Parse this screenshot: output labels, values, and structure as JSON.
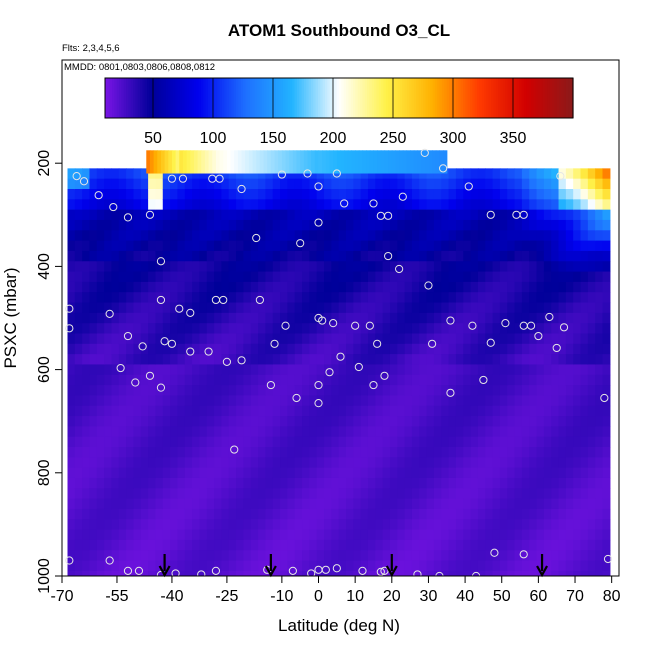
{
  "chart_data": {
    "type": "heatmap",
    "title": "ATOM1 Southbound O3_CL",
    "notes": [
      "Flts: 2,3,4,5,6",
      "MMDD: 0801,0803,0806,0808,0812"
    ],
    "xlabel": "Latitude (deg N)",
    "ylabel": "PSXC (mbar)",
    "xlim": [
      -70,
      82
    ],
    "ylim": [
      1000,
      0
    ],
    "y_reversed": true,
    "x_ticks": [
      -70,
      -55,
      -40,
      -25,
      -10,
      0,
      10,
      20,
      30,
      40,
      50,
      60,
      70,
      80
    ],
    "x_tick_labels": [
      "-70",
      "-55",
      "-40",
      "-25",
      "-10",
      "0",
      "10",
      "20",
      "30",
      "40",
      "50",
      "60",
      "70",
      "80"
    ],
    "y_ticks": [
      200,
      400,
      600,
      800,
      1000
    ],
    "y_tick_labels": [
      "200",
      "400",
      "600",
      "800",
      "1000"
    ],
    "colorbar": {
      "range": [
        10,
        400
      ],
      "ticks": [
        50,
        100,
        150,
        200,
        250,
        300,
        350
      ],
      "tick_labels": [
        "50",
        "100",
        "150",
        "200",
        "250",
        "300",
        "350"
      ],
      "colors": [
        "#7a14e6",
        "#000099",
        "#0000ee",
        "#1e6fff",
        "#22b4ff",
        "#ffffff",
        "#fff24a",
        "#ffb000",
        "#ff3a00",
        "#d10000",
        "#8b1a1a"
      ],
      "position": "top"
    },
    "data_extent": {
      "lat_range": [
        -68.5,
        79.5
      ],
      "top_pressure": 210,
      "stratospheric_band": {
        "lat_range": [
          -47,
          35
        ],
        "pressure_range": [
          175,
          220
        ]
      }
    },
    "arrow_latitudes": [
      -42,
      -13,
      20,
      61
    ],
    "sample_points": [
      [
        -66,
        225
      ],
      [
        -64,
        235
      ],
      [
        -60,
        262
      ],
      [
        -56,
        285
      ],
      [
        -52,
        305
      ],
      [
        -46,
        300
      ],
      [
        -40,
        230
      ],
      [
        -37,
        230
      ],
      [
        -29,
        230
      ],
      [
        -27,
        230
      ],
      [
        -21,
        250
      ],
      [
        -17,
        345
      ],
      [
        -10,
        222
      ],
      [
        -5,
        355
      ],
      [
        -3,
        220
      ],
      [
        0,
        245
      ],
      [
        5,
        220
      ],
      [
        7,
        278
      ],
      [
        15,
        278
      ],
      [
        17,
        302
      ],
      [
        19,
        302
      ],
      [
        23,
        265
      ],
      [
        29,
        180
      ],
      [
        34,
        210
      ],
      [
        41,
        245
      ],
      [
        47,
        300
      ],
      [
        54,
        300
      ],
      [
        56,
        300
      ],
      [
        60,
        535
      ],
      [
        66,
        225
      ],
      [
        -43,
        390
      ],
      [
        -43,
        465
      ],
      [
        -35,
        490
      ],
      [
        -28,
        465
      ],
      [
        -26,
        465
      ],
      [
        -16,
        465
      ],
      [
        -12,
        550
      ],
      [
        -9,
        515
      ],
      [
        0,
        315
      ],
      [
        0,
        500
      ],
      [
        1,
        505
      ],
      [
        4,
        510
      ],
      [
        10,
        515
      ],
      [
        14,
        515
      ],
      [
        16,
        550
      ],
      [
        19,
        380
      ],
      [
        22,
        405
      ],
      [
        30,
        437
      ],
      [
        31,
        550
      ],
      [
        36,
        505
      ],
      [
        42,
        515
      ],
      [
        47,
        548
      ],
      [
        51,
        510
      ],
      [
        56,
        515
      ],
      [
        58,
        515
      ],
      [
        63,
        498
      ],
      [
        65,
        558
      ],
      [
        67,
        518
      ],
      [
        -68,
        482
      ],
      [
        -68,
        520
      ],
      [
        -57,
        492
      ],
      [
        -52,
        535
      ],
      [
        -48,
        555
      ],
      [
        -42,
        545
      ],
      [
        -40,
        550
      ],
      [
        -38,
        482
      ],
      [
        -35,
        565
      ],
      [
        -30,
        565
      ],
      [
        -25,
        585
      ],
      [
        -21,
        582
      ],
      [
        -13,
        630
      ],
      [
        -6,
        655
      ],
      [
        0,
        630
      ],
      [
        0,
        665
      ],
      [
        3,
        605
      ],
      [
        6,
        575
      ],
      [
        11,
        595
      ],
      [
        15,
        630
      ],
      [
        18,
        612
      ],
      [
        36,
        645
      ],
      [
        45,
        620
      ],
      [
        78,
        655
      ],
      [
        -46,
        612
      ],
      [
        -43,
        635
      ],
      [
        -50,
        625
      ],
      [
        -54,
        597
      ],
      [
        -23,
        755
      ],
      [
        -68,
        970
      ],
      [
        -57,
        970
      ],
      [
        -52,
        990
      ],
      [
        -49,
        990
      ],
      [
        -43,
        998
      ],
      [
        -39,
        995
      ],
      [
        -32,
        997
      ],
      [
        -28,
        990
      ],
      [
        -14,
        988
      ],
      [
        -7,
        990
      ],
      [
        -2,
        995
      ],
      [
        0,
        988
      ],
      [
        2,
        988
      ],
      [
        5,
        985
      ],
      [
        12,
        990
      ],
      [
        17,
        992
      ],
      [
        18,
        990
      ],
      [
        27,
        997
      ],
      [
        33,
        1000
      ],
      [
        43,
        1000
      ],
      [
        48,
        955
      ],
      [
        56,
        958
      ],
      [
        79,
        967
      ]
    ]
  }
}
